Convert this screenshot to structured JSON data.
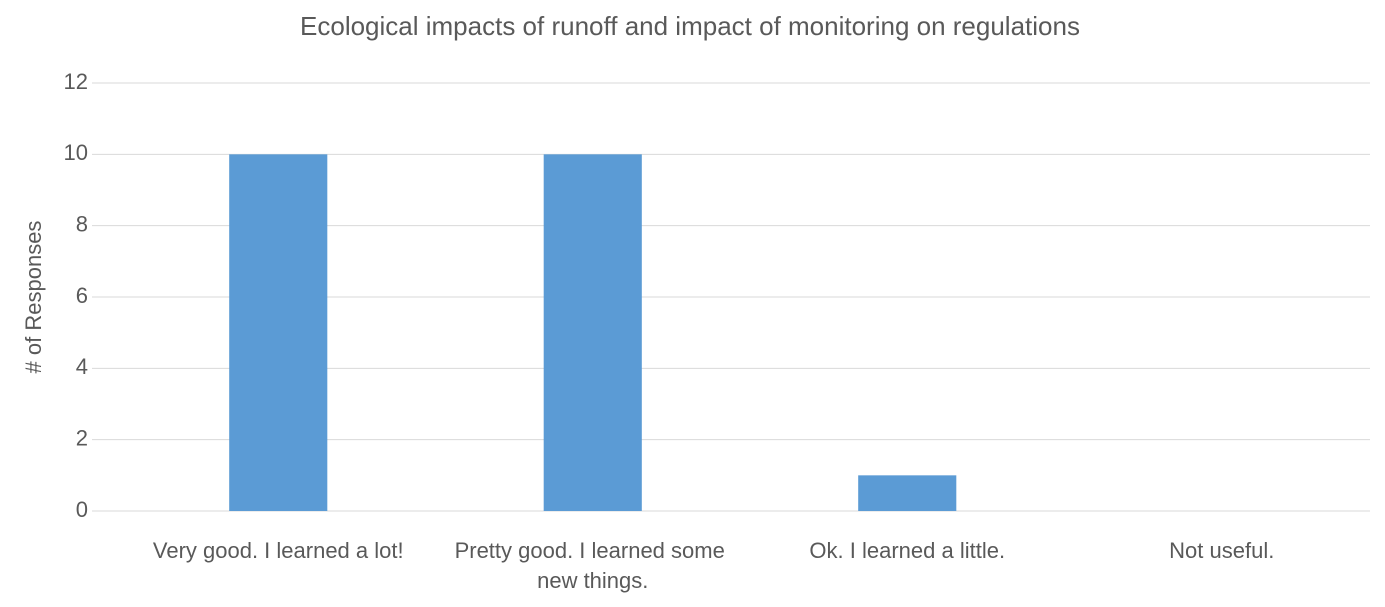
{
  "chart_data": {
    "type": "bar",
    "title": "Ecological impacts of runoff and impact of monitoring on regulations",
    "y_label": "# of Responses",
    "categories": [
      "Very good. I learned a lot!",
      "Pretty good. I learned some new things.",
      "Ok. I learned a little.",
      "Not useful."
    ],
    "values": [
      10,
      10,
      1,
      0
    ],
    "color": "#5b9bd5",
    "ylim": [
      0,
      12
    ],
    "yticks": [
      0,
      2,
      4,
      6,
      8,
      10,
      12
    ],
    "grid": true
  }
}
